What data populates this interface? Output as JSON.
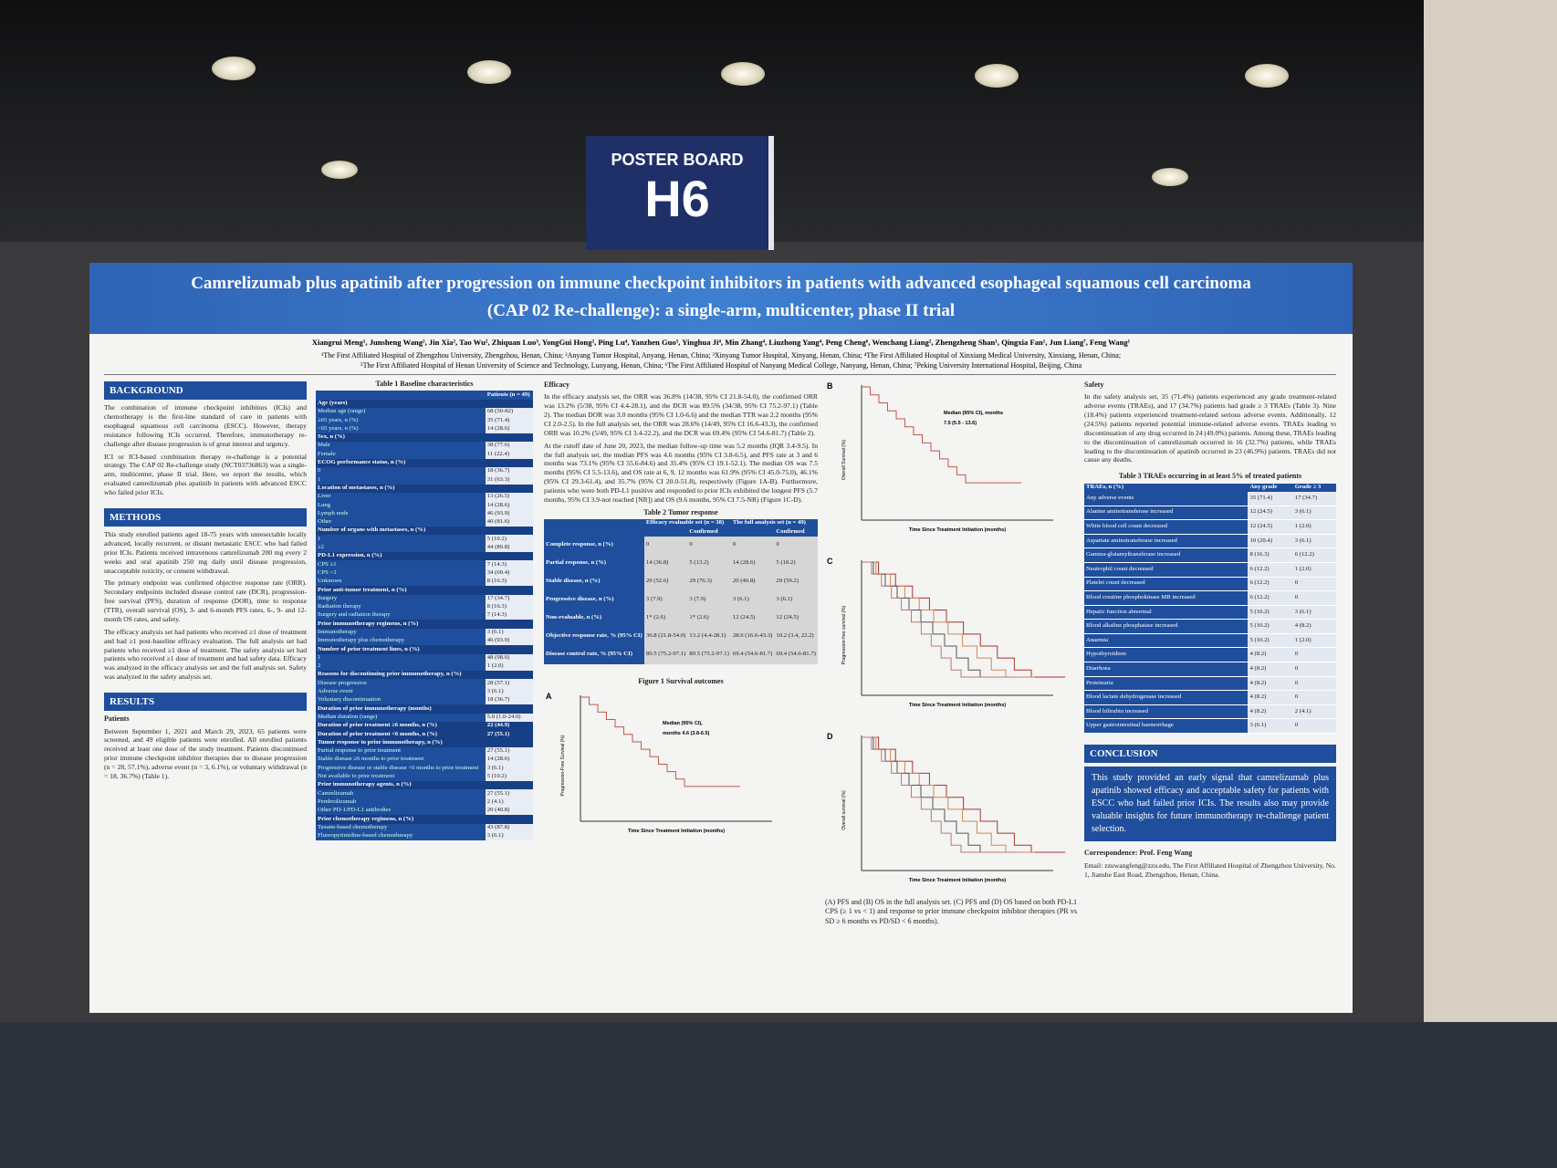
{
  "sign": {
    "label": "POSTER BOARD",
    "board": "H6"
  },
  "poster": {
    "title_lines": [
      "Camrelizumab plus apatinib after progression on immune checkpoint inhibitors in patients with advanced esophageal squamous cell carcinoma",
      "(CAP 02 Re-challenge): a single-arm, multicenter, phase II trial"
    ],
    "authors": "Xiangrui Meng¹, Junsheng Wang², Jin Xia², Tao Wu², Zhiquan Luo³, YongGui Hong², Ping Lu⁴, Yanzhen Guo⁵, Yinghua Ji⁴, Min Zhang⁴, Liuzhong Yang⁴, Peng Cheng⁶, Wenchang Liang², Zhengzheng Shan¹, Qingxia Fan¹, Jun Liang⁷, Feng Wang¹",
    "affiliations": [
      "¹The First Affiliated Hospital of Zhengzhou University, Zhengzhou, Henan, China; ²Anyang Tumor Hospital, Anyang, Henan, China; ³Xinyang Tumor Hospital, Xinyang, Henan, China; ⁴The First Affiliated Hospital of Xinxiang Medical University, Xinxiang, Henan, China;",
      "⁵The First Affiliated Hospital of Henan University of Science and Technology, Luoyang, Henan, China; ⁶The First Affiliated Hospital of Nanyang Medical College, Nanyang, Henan, China; ⁷Peking University International Hospital, Beijing, China"
    ],
    "background": {
      "heading": "BACKGROUND",
      "paragraphs": [
        "The combination of immune checkpoint inhibitors (ICIs) and chemotherapy is the first-line standard of care in patients with esophageal squamous cell carcinoma (ESCC). However, therapy resistance following ICIs occurred. Therefore, immunotherapy re-challenge after disease progression is of great interest and urgency.",
        "ICI or ICI-based combination therapy re-challenge is a potential strategy. The CAP 02 Re-challenge study (NCT03736863) was a single-arm, multicenter, phase II trial. Here, we report the results, which evaluated camrelizumab plus apatinib in patients with advanced ESCC who failed prior ICIs."
      ]
    },
    "methods": {
      "heading": "METHODS",
      "paragraphs": [
        "This study enrolled patients aged 18-75 years with unresectable locally advanced, locally recurrent, or distant metastatic ESCC who had failed prior ICIs. Patients received intravenous camrelizumab 200 mg every 2 weeks and oral apatinib 250 mg daily until disease progression, unacceptable toxicity, or consent withdrawal.",
        "The primary endpoint was confirmed objective response rate (ORR). Secondary endpoints included disease control rate (DCR), progression-free survival (PFS), duration of response (DOR), time to response (TTR), overall survival (OS), 3- and 6-month PFS rates, 6-, 9- and 12-month OS rates, and safety.",
        "The efficacy analysis set had patients who received ≥1 dose of treatment and had ≥1 post-baseline efficacy evaluation. The full analysis set had patients who received ≥1 dose of treatment. The safety analysis set had patients who received ≥1 dose of treatment and had safety data. Efficacy was analyzed in the efficacy analysis set and the full analysis set. Safety was analyzed in the safety analysis set."
      ]
    },
    "results": {
      "heading": "RESULTS",
      "subheading": "Patients",
      "text": "Between September 1, 2021 and March 29, 2023, 65 patients were screened, and 49 eligible patients were enrolled. All enrolled patients received at least one dose of the study treatment. Patients discontinued prior immune checkpoint inhibitor therapies due to disease progression (n = 28, 57.1%), adverse event (n = 3, 6.1%), or voluntary withdrawal (n = 18, 36.7%) (Table 1)."
    },
    "table1": {
      "title": "Table 1 Baseline characteristics",
      "column": "Patients (n = 49)",
      "groups": [
        {
          "heading": "Age (years)",
          "rows": [
            [
              "Median age (range)",
              "68 (50-82)"
            ],
            [
              "≥65 years, n (%)",
              "35 (71.4)"
            ],
            [
              "<65 years, n (%)",
              "14 (28.6)"
            ]
          ]
        },
        {
          "heading": "Sex, n (%)",
          "rows": [
            [
              "Male",
              "38 (77.6)"
            ],
            [
              "Female",
              "11 (22.4)"
            ]
          ]
        },
        {
          "heading": "ECOG performance status, n (%)",
          "rows": [
            [
              "0",
              "18 (36.7)"
            ],
            [
              "1",
              "31 (63.3)"
            ]
          ]
        },
        {
          "heading": "Location of metastases, n (%)",
          "rows": [
            [
              "Liver",
              "13 (26.5)"
            ],
            [
              "Lung",
              "14 (28.6)"
            ],
            [
              "Lymph node",
              "46 (93.9)"
            ],
            [
              "Other",
              "40 (81.6)"
            ]
          ]
        },
        {
          "heading": "Number of organs with metastases, n (%)",
          "rows": [
            [
              "1",
              "5 (10.2)"
            ],
            [
              "≥2",
              "44 (89.8)"
            ]
          ]
        },
        {
          "heading": "PD-L1 expression, n (%)",
          "rows": [
            [
              "CPS ≥1",
              "7 (14.3)"
            ],
            [
              "CPS <1",
              "34 (69.4)"
            ],
            [
              "Unknown",
              "8 (16.3)"
            ]
          ]
        },
        {
          "heading": "Prior anti-tumor treatment, n (%)",
          "rows": [
            [
              "Surgery",
              "17 (34.7)"
            ],
            [
              "Radiation therapy",
              "8 (16.3)"
            ],
            [
              "Surgery and radiation therapy",
              "7 (14.3)"
            ]
          ]
        },
        {
          "heading": "Prior immunotherapy regimens, n (%)",
          "rows": [
            [
              "Immunotherapy",
              "3 (6.1)"
            ],
            [
              "Immunotherapy plus chemotherapy",
              "46 (93.9)"
            ]
          ]
        },
        {
          "heading": "Number of prior treatment lines, n (%)",
          "rows": [
            [
              "1",
              "48 (98.0)"
            ],
            [
              "2",
              "1 (2.0)"
            ]
          ]
        },
        {
          "heading": "Reasons for discontinuing prior immunotherapy, n (%)",
          "rows": [
            [
              "Disease progression",
              "28 (57.1)"
            ],
            [
              "Adverse event",
              "3 (6.1)"
            ],
            [
              "Voluntary discontinuation",
              "18 (36.7)"
            ]
          ]
        },
        {
          "heading": "Duration of prior immunotherapy (months)",
          "rows": [
            [
              "Median duration (range)",
              "5.0 (1.0-24.0)"
            ]
          ]
        },
        {
          "heading": "Duration of prior treatment ≥6 months, n (%)",
          "value": "22 (44.9)",
          "rows": []
        },
        {
          "heading": "Duration of prior treatment <6 months, n (%)",
          "value": "27 (55.1)",
          "rows": []
        },
        {
          "heading": "Tumor response to prior immunotherapy, n (%)",
          "rows": [
            [
              "Partial response to prior treatment",
              "27 (55.1)"
            ],
            [
              "Stable disease ≥6 months to prior treatment",
              "14 (28.6)"
            ],
            [
              "Progressive disease or stable disease <6 months to prior treatment",
              "3 (6.1)"
            ],
            [
              "Not available to prior treatment",
              "5 (10.2)"
            ]
          ]
        },
        {
          "heading": "Prior immunotherapy agents, n (%)",
          "rows": [
            [
              "Camrelizumab",
              "27 (55.1)"
            ],
            [
              "Pembrolizumab",
              "2 (4.1)"
            ],
            [
              "Other PD-1/PD-L1 antibodies",
              "20 (40.8)"
            ]
          ]
        },
        {
          "heading": "Prior chemotherapy regimens, n (%)",
          "rows": [
            [
              "Taxane-based chemotherapy",
              "43 (87.8)"
            ],
            [
              "Fluoropyrimidine-based chemotherapy",
              "3 (6.1)"
            ]
          ]
        }
      ]
    },
    "efficacy": {
      "heading": "Efficacy",
      "paragraphs": [
        "In the efficacy analysis set, the ORR was 36.8% (14/38, 95% CI 21.8-54.0), the confirmed ORR was 13.2% (5/38, 95% CI 4.4-28.1), and the DCR was 89.5% (34/38, 95% CI 75.2-97.1) (Table 2). The median DOR was 3.0 months (95% CI 1.0-6.6) and the median TTR was 2.2 months (95% CI 2.0-2.5). In the full analysis set, the ORR was 28.6% (14/49, 95% CI 16.6-43.3), the confirmed ORR was 10.2% (5/49, 95% CI 3.4-22.2), and the DCR was 69.4% (95% CI 54.6-81.7) (Table 2).",
        "At the cutoff date of June 20, 2023, the median follow-up time was 5.2 months (IQR 3.4-9.5). In the full analysis set, the median PFS was 4.6 months (95% CI 3.8-6.5), and PFS rate at 3 and 6 months was 73.1% (95% CI 55.6-84.6) and 35.4% (95% CI 19.1-52.1). The median OS was 7.5 months (95% CI 5.5-13.6), and OS rate at 6, 9, 12 months was 61.9% (95% CI 45.0-75.0), 46.1% (95% CI 29.3-61.4), and 35.7% (95% CI 20.0-51.8), respectively (Figure 1A-B). Furthermore, patients who were both PD-L1 positive and responded to prior ICIs exhibited the longest PFS (5.7 months, 95% CI 3.9-not reached [NR]) and OS (9.6 months, 95% CI 7.5-NR) (Figure 1C-D)."
      ]
    },
    "table2": {
      "title": "Table 2 Tumor response",
      "groups": [
        "Efficacy evaluable set (n = 38)",
        "The full analysis set (n = 49)"
      ],
      "subcolumn": "Confirmed",
      "rows": [
        [
          "Complete response, n (%)",
          "0",
          "0",
          "0",
          "0"
        ],
        [
          "Partial response, n (%)",
          "14 (36.8)",
          "5 (13.2)",
          "14 (28.6)",
          "5 (10.2)"
        ],
        [
          "Stable disease, n (%)",
          "20 (52.6)",
          "29 (76.3)",
          "20 (40.8)",
          "29 (59.2)"
        ],
        [
          "Progressive disease, n (%)",
          "3 (7.9)",
          "3 (7.9)",
          "3 (6.1)",
          "3 (6.1)"
        ],
        [
          "Non-evaluable, n (%)",
          "1* (2.6)",
          "1* (2.6)",
          "12 (24.5)",
          "12 (24.5)"
        ],
        [
          "Objective response rate, % (95% CI)",
          "36.8 (21.8-54.0)",
          "13.2 (4.4-28.1)",
          "28.6 (16.6-43.3)",
          "10.2 (3.4, 22.2)"
        ],
        [
          "Disease control rate, % (95% CI)",
          "89.5 (75.2-97.1)",
          "89.5 (75.2-97.1)",
          "69.4 (54.6-81.7)",
          "69.4 (54.6-81.7)"
        ]
      ]
    },
    "figure1": {
      "title": "Figure 1 Survival outcomes",
      "panels": [
        "A",
        "B",
        "C",
        "D"
      ],
      "x_label": "Time Since Treatment Initiation (months)",
      "y_labels": [
        "Progression-Free Survival (%)",
        "Overall Survival (%)",
        "Progression-free survival (%)",
        "Overall survival (%)"
      ],
      "median_pfs": [
        "Median (95% CI),",
        "months 4.6 (3.8-6.5)"
      ],
      "median_os": [
        "Median (95% CI), months",
        "7.5 (5.5 - 13.6)"
      ],
      "caption": "(A) PFS and (B) OS in the full analysis set. (C) PFS and (D) OS based on both PD-L1 CPS (≥ 1 vs < 1) and response to prior immune checkpoint inhibitor therapies (PR vs SD ≥ 6 months vs PD/SD < 6 months)."
    },
    "safety": {
      "heading": "Safety",
      "text": "In the safety analysis set, 35 (71.4%) patients experienced any grade treatment-related adverse events (TRAEs), and 17 (34.7%) patients had grade ≥ 3 TRAEs (Table 3). Nine (18.4%) patients experienced treatment-related serious adverse events. Additionally, 12 (24.5%) patients reported potential immune-related adverse events. TRAEs leading to discontinuation of any drug occurred in 24 (49.0%) patients. Among these, TRAEs leading to the discontinuation of camrelizumab occurred in 16 (32.7%) patients, while TRAEs leading to the discontinuation of apatinib occurred in 23 (46.9%) patients. TRAEs did not cause any deaths."
    },
    "table3": {
      "title": "Table 3 TRAEs occurring in at least 5% of treated patients",
      "columns": [
        "TRAEs, n (%)",
        "Any grade",
        "Grade ≥ 3"
      ],
      "rows": [
        [
          "Any adverse events",
          "35 (71.4)",
          "17 (34.7)"
        ],
        [
          "Alanine aminotransferase increased",
          "12 (24.5)",
          "3 (6.1)"
        ],
        [
          "White blood cell count decreased",
          "12 (24.5)",
          "1 (2.0)"
        ],
        [
          "Aspartate aminotransferase increased",
          "10 (20.4)",
          "3 (6.1)"
        ],
        [
          "Gamma-glutamyltransferase increased",
          "8 (16.3)",
          "6 (12.2)"
        ],
        [
          "Neutrophil count decreased",
          "6 (12.2)",
          "1 (2.0)"
        ],
        [
          "Platelet count decreased",
          "6 (12.2)",
          "0"
        ],
        [
          "Blood creatine phosphokinase MB increased",
          "6 (12.2)",
          "0"
        ],
        [
          "Hepatic function abnormal",
          "5 (10.2)",
          "3 (6.1)"
        ],
        [
          "Blood alkaline phosphatase increased",
          "5 (10.2)",
          "4 (8.2)"
        ],
        [
          "Anaemia",
          "5 (10.2)",
          "1 (2.0)"
        ],
        [
          "Hypothyroidism",
          "4 (8.2)",
          "0"
        ],
        [
          "Diarrhoea",
          "4 (8.2)",
          "0"
        ],
        [
          "Proteinuria",
          "4 (8.2)",
          "0"
        ],
        [
          "Blood lactate dehydrogenase increased",
          "4 (8.2)",
          "0"
        ],
        [
          "Blood bilirubin increased",
          "4 (8.2)",
          "2 (4.1)"
        ],
        [
          "Upper gastrointestinal haemorrhage",
          "3 (6.1)",
          "0"
        ]
      ]
    },
    "conclusion": {
      "heading": "CONCLUSION",
      "text": "This study provided an early signal that camrelizumab plus apatinib showed efficacy and acceptable safety for patients with ESCC who had failed prior ICIs. The results also may provide valuable insights for future immunotherapy re-challenge patient selection."
    },
    "correspondence": {
      "heading": "Correspondence: Prof. Feng Wang",
      "text": "Email: zzuwangfeng@zzu.edu, The First Affiliated Hospital of Zhengzhou University, No. 1, Jianshe East Road, Zhengzhou, Henan, China."
    }
  }
}
